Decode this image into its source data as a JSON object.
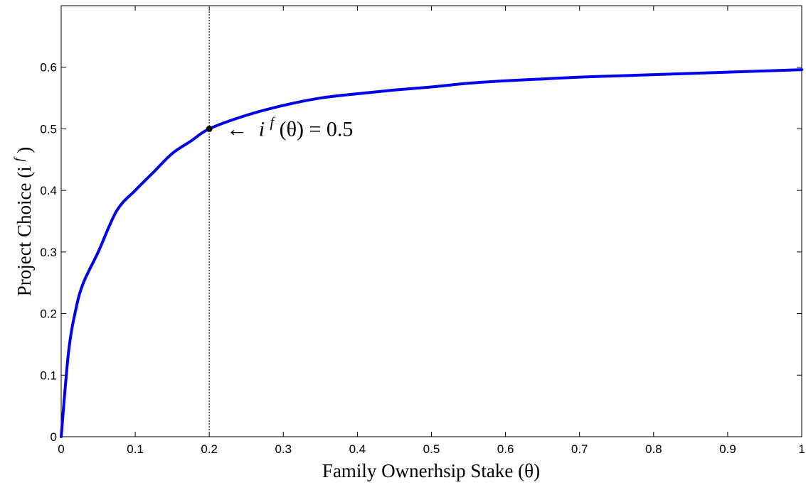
{
  "chart_data": {
    "type": "line",
    "title": "",
    "xlabel": "Family Ownerhsip Stake (θ)",
    "ylabel": "Project Choice (i",
    "ylabel_sup": "f",
    "ylabel_close": ")",
    "xlim": [
      0,
      1
    ],
    "ylim": [
      0,
      0.7
    ],
    "x_ticks": [
      0,
      0.1,
      0.2,
      0.3,
      0.4,
      0.5,
      0.6,
      0.7,
      0.8,
      0.9,
      1
    ],
    "x_tick_labels": [
      "0",
      "0.1",
      "0.2",
      "0.3",
      "0.4",
      "0.5",
      "0.6",
      "0.7",
      "0.8",
      "0.9",
      "1"
    ],
    "y_ticks": [
      0,
      0.1,
      0.2,
      0.3,
      0.4,
      0.5,
      0.6
    ],
    "y_tick_labels": [
      "0",
      "0.1",
      "0.2",
      "0.3",
      "0.4",
      "0.5",
      "0.6"
    ],
    "grid": false,
    "series": [
      {
        "color": "#0000ee",
        "x": [
          0,
          0.01,
          0.02,
          0.03,
          0.05,
          0.075,
          0.1,
          0.125,
          0.15,
          0.175,
          0.2,
          0.25,
          0.3,
          0.35,
          0.4,
          0.45,
          0.5,
          0.55,
          0.6,
          0.65,
          0.7,
          0.75,
          0.8,
          0.85,
          0.9,
          0.95,
          1.0
        ],
        "y": [
          0,
          0.138,
          0.208,
          0.25,
          0.3,
          0.367,
          0.4,
          0.43,
          0.46,
          0.48,
          0.5,
          0.522,
          0.538,
          0.55,
          0.557,
          0.563,
          0.568,
          0.574,
          0.578,
          0.581,
          0.584,
          0.586,
          0.588,
          0.59,
          0.592,
          0.594,
          0.596
        ]
      }
    ],
    "vline": {
      "x": 0.2,
      "style": "dotted",
      "color": "#555555"
    },
    "marker": {
      "x": 0.2,
      "y": 0.5,
      "color": "#000000"
    },
    "annotation": {
      "arrow": "←",
      "italic_i": "i",
      "sup": "f",
      "body": "(θ) = 0.5"
    }
  }
}
